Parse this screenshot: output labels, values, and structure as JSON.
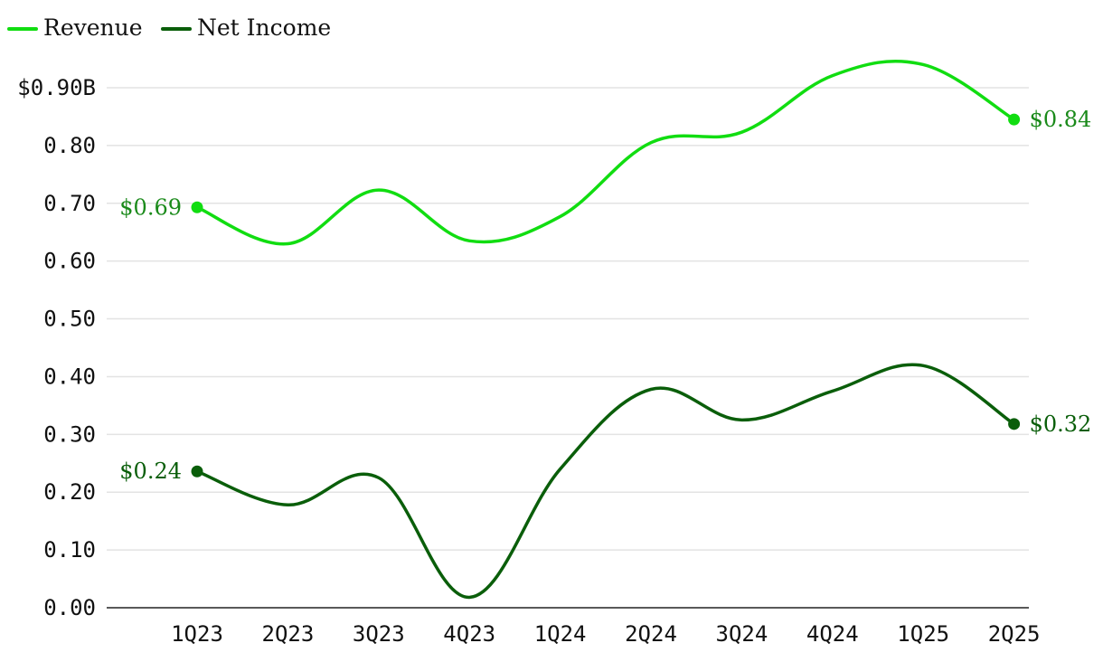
{
  "chart_data": {
    "type": "line",
    "title": "",
    "xlabel": "",
    "ylabel": "",
    "categories": [
      "1Q23",
      "2Q23",
      "3Q23",
      "4Q23",
      "1Q24",
      "2Q24",
      "3Q24",
      "4Q24",
      "1Q25",
      "2Q25"
    ],
    "ylim": [
      0,
      0.9
    ],
    "y_ticks": [
      {
        "value": 0.9,
        "label": "$0.90B"
      },
      {
        "value": 0.8,
        "label": "0.80"
      },
      {
        "value": 0.7,
        "label": "0.70"
      },
      {
        "value": 0.6,
        "label": "0.60"
      },
      {
        "value": 0.5,
        "label": "0.50"
      },
      {
        "value": 0.4,
        "label": "0.40"
      },
      {
        "value": 0.3,
        "label": "0.30"
      },
      {
        "value": 0.2,
        "label": "0.20"
      },
      {
        "value": 0.1,
        "label": "0.10"
      },
      {
        "value": 0.0,
        "label": "0.00"
      }
    ],
    "grid": true,
    "legend_position": "top-left",
    "series": [
      {
        "name": "Revenue",
        "color": "#11dd11",
        "label_color": "#1a8a1a",
        "values": [
          0.693,
          0.63,
          0.723,
          0.635,
          0.677,
          0.805,
          0.823,
          0.921,
          0.94,
          0.845
        ],
        "start_label": "$0.69",
        "end_label": "$0.84"
      },
      {
        "name": "Net Income",
        "color": "#0a5e0a",
        "label_color": "#0a5e0a",
        "values": [
          0.236,
          0.178,
          0.225,
          0.018,
          0.24,
          0.378,
          0.325,
          0.375,
          0.419,
          0.318
        ],
        "start_label": "$0.24",
        "end_label": "$0.32"
      }
    ]
  }
}
